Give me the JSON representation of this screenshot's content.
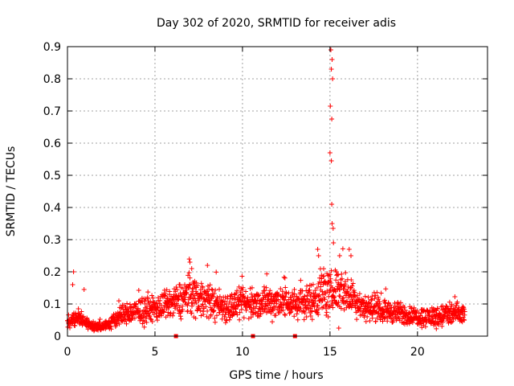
{
  "chart_data": {
    "type": "scatter",
    "title": "Day 302 of 2020, SRMTID for receiver adis",
    "xlabel": "GPS time / hours",
    "ylabel": "SRMTID / TECUs",
    "xlim": [
      0,
      24
    ],
    "ylim": [
      0,
      0.9
    ],
    "x_ticks": [
      0,
      5,
      10,
      15,
      20
    ],
    "x_tick_labels": [
      "0",
      "5",
      "10",
      "15",
      "20"
    ],
    "y_ticks": [
      0,
      0.1,
      0.2,
      0.3,
      0.4,
      0.5,
      0.6,
      0.7,
      0.8,
      0.9
    ],
    "y_tick_labels": [
      "0",
      "0.1",
      "0.2",
      "0.3",
      "0.4",
      "0.5",
      "0.6",
      "0.7",
      "0.8",
      "0.9"
    ],
    "grid": true,
    "marker": "+",
    "color": "#ff0000",
    "baseline_profile": {
      "description": "typical SRMTID level by hour (data units)",
      "hours": [
        0,
        0.5,
        1,
        1.5,
        2,
        2.5,
        3,
        3.5,
        4,
        5,
        6,
        7,
        8,
        9,
        10,
        11,
        12,
        13,
        14,
        14.5,
        15,
        15.5,
        16,
        17,
        18,
        19,
        20,
        21,
        22,
        22.7
      ],
      "levels": [
        0.04,
        0.06,
        0.045,
        0.03,
        0.03,
        0.04,
        0.065,
        0.07,
        0.075,
        0.085,
        0.1,
        0.13,
        0.11,
        0.09,
        0.1,
        0.1,
        0.11,
        0.1,
        0.11,
        0.14,
        0.13,
        0.15,
        0.13,
        0.09,
        0.08,
        0.07,
        0.06,
        0.06,
        0.07,
        0.065
      ],
      "spread": [
        0.012,
        0.02,
        0.015,
        0.01,
        0.01,
        0.015,
        0.025,
        0.025,
        0.03,
        0.03,
        0.035,
        0.05,
        0.04,
        0.035,
        0.035,
        0.035,
        0.04,
        0.035,
        0.04,
        0.06,
        0.05,
        0.05,
        0.045,
        0.03,
        0.025,
        0.025,
        0.02,
        0.025,
        0.03,
        0.025
      ]
    },
    "notable_points": [
      {
        "x": 0.35,
        "y": 0.2
      },
      {
        "x": 0.3,
        "y": 0.16
      },
      {
        "x": 0.95,
        "y": 0.145
      },
      {
        "x": 7.0,
        "y": 0.23
      },
      {
        "x": 7.1,
        "y": 0.21
      },
      {
        "x": 8.0,
        "y": 0.22
      },
      {
        "x": 14.3,
        "y": 0.27
      },
      {
        "x": 14.35,
        "y": 0.25
      },
      {
        "x": 15.05,
        "y": 0.89
      },
      {
        "x": 15.12,
        "y": 0.86
      },
      {
        "x": 15.08,
        "y": 0.83
      },
      {
        "x": 15.15,
        "y": 0.8
      },
      {
        "x": 15.02,
        "y": 0.715
      },
      {
        "x": 15.1,
        "y": 0.675
      },
      {
        "x": 15.0,
        "y": 0.57
      },
      {
        "x": 15.08,
        "y": 0.545
      },
      {
        "x": 15.1,
        "y": 0.41
      },
      {
        "x": 15.12,
        "y": 0.35
      },
      {
        "x": 15.18,
        "y": 0.335
      },
      {
        "x": 15.2,
        "y": 0.29
      },
      {
        "x": 15.55,
        "y": 0.25
      },
      {
        "x": 15.5,
        "y": 0.025
      },
      {
        "x": 16.1,
        "y": 0.27
      },
      {
        "x": 16.2,
        "y": 0.25
      }
    ],
    "data_gaps_hours": [
      6.2,
      10.6,
      13.0
    ]
  }
}
